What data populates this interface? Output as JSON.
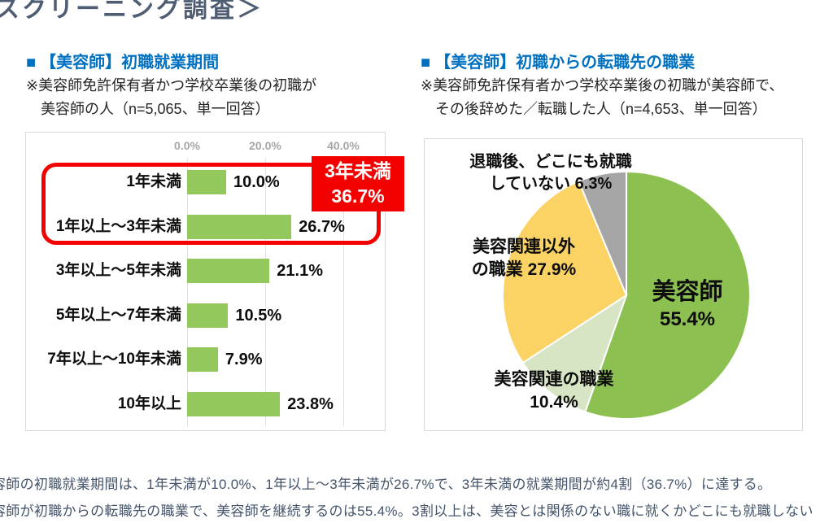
{
  "page": {
    "heading": "スクリーニング調査＞",
    "commentary": [
      "容師の初職就業期間は、1年未満が10.0%、1年以上～3年未満が26.7%で、3年未満の就業期間が約4割（36.7%）に達する。",
      "容師が初職からの転職先の職業で、美容師を継続するのは55.4%。3割以上は、美容とは関係のない職に就くかどこにも就職しない"
    ]
  },
  "left_section": {
    "bullet": "■",
    "title": "【美容師】初職就業期間",
    "note_line1": "※美容師免許保有者かつ学校卒業後の初職が",
    "note_line2": "美容師の人（n=5,065、単一回答）"
  },
  "right_section": {
    "bullet": "■",
    "title": "【美容師】初職からの転職先の職業",
    "note_line1": "※美容師免許保有者かつ学校卒業後の初職が美容師で、",
    "note_line2": "その後辞めた／転職した人（n=4,653、単一回答）"
  },
  "colors": {
    "title_blue": "#0070C0",
    "bar_green": "#92C85C",
    "grid_gray": "#E2E2E2",
    "axis_label_gray": "#A6A6A6",
    "highlight_red": "#F30000",
    "heading_slate": "#4E5D73",
    "commentary_slate": "#44546A"
  },
  "chart_data": [
    {
      "type": "bar",
      "orientation": "horizontal",
      "title": "【美容師】初職就業期間",
      "categories": [
        "1年未満",
        "1年以上～3年未満",
        "3年以上～5年未満",
        "5年以上～7年未満",
        "7年以上～10年未満",
        "10年以上"
      ],
      "values": [
        10.0,
        26.7,
        21.1,
        10.5,
        7.9,
        23.8
      ],
      "value_labels": [
        "10.0%",
        "26.7%",
        "21.1%",
        "10.5%",
        "7.9%",
        "23.8%"
      ],
      "x_ticks": [
        "0.0%",
        "20.0%",
        "40.0%"
      ],
      "x_tick_values": [
        0,
        20,
        40
      ],
      "xlim": [
        0,
        50
      ],
      "bar_color": "#92C85C",
      "grid": true,
      "annotation": {
        "lines": [
          "3年未満",
          "36.7%"
        ],
        "applies_to": [
          "1年未満",
          "1年以上～3年未満"
        ]
      }
    },
    {
      "type": "pie",
      "title": "【美容師】初職からの転職先の職業",
      "start_angle_deg": 0,
      "direction": "clockwise",
      "slices": [
        {
          "label": "美容師",
          "value": 55.4,
          "color": "#8CC152",
          "display_lines": [
            "美容師",
            "55.4%"
          ]
        },
        {
          "label": "美容関連の職業",
          "value": 10.4,
          "color": "#D7E5C4",
          "display_lines": [
            "美容関連の職業",
            "10.4%"
          ]
        },
        {
          "label": "美容関連以外の職業",
          "value": 27.9,
          "color": "#FAD364",
          "display_lines": [
            "美容関連以外",
            "の職業 27.9%"
          ]
        },
        {
          "label": "退職後、どこにも就職していない",
          "value": 6.3,
          "color": "#A5A5A5",
          "display_lines": [
            "退職後、どこにも就職",
            "していない 6.3%"
          ]
        }
      ]
    }
  ]
}
